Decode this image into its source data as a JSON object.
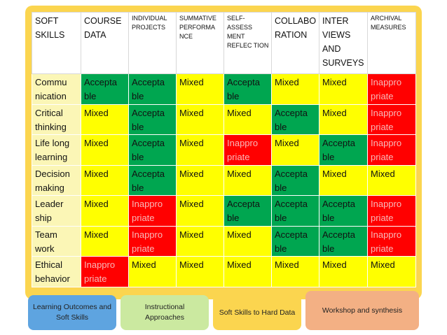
{
  "table": {
    "headers": [
      "SOFT SKILLS",
      "COURSE DATA",
      "INDIVIDUAL PROJECTS",
      "SUMMATIVE PERFORMA NCE",
      "SELF-ASSESS MENT REFLEC TION",
      "COLLABO RATION",
      "INTER VIEWS AND SURVEYS",
      "ARCHIVAL MEASURES"
    ],
    "rows": [
      {
        "skill": "Commu nication",
        "cells": [
          "Accepta ble",
          "Accepta ble",
          "Mixed",
          "Accepta ble",
          "Mixed",
          "Mixed",
          "Inappro priate"
        ]
      },
      {
        "skill": "Critical thinking",
        "cells": [
          "Mixed",
          "Accepta ble",
          "Mixed",
          "Mixed",
          "Accepta ble",
          "Mixed",
          "Inappro priate"
        ]
      },
      {
        "skill": "Life long learning",
        "cells": [
          "Mixed",
          "Accepta ble",
          "Mixed",
          "Inappro priate",
          "Mixed",
          "Accepta ble",
          "Inappro priate"
        ]
      },
      {
        "skill": "Decision making",
        "cells": [
          "Mixed",
          "Accepta ble",
          "Mixed",
          "Mixed",
          "Accepta ble",
          "Mixed",
          "Mixed"
        ]
      },
      {
        "skill": "Leader ship",
        "cells": [
          "Mixed",
          "Inappro priate",
          "Mixed",
          "Accepta ble",
          "Accepta ble",
          "Accepta ble",
          "Inappro priate"
        ]
      },
      {
        "skill": "Team work",
        "cells": [
          "Mixed",
          "Inappro priate",
          "Mixed",
          "Mixed",
          "Accepta ble",
          "Accepta ble",
          "Inappro priate"
        ]
      },
      {
        "skill": "Ethical behavior",
        "cells": [
          "Inappro priate",
          "Mixed",
          "Mixed",
          "Mixed",
          "Mixed",
          "Mixed",
          "Mixed"
        ]
      }
    ]
  },
  "tabs": {
    "t1": "Learning Outcomes and Soft Skills",
    "t2": "Instructional Approaches",
    "t3": "Soft Skills to Hard Data",
    "t4": "Workshop and synthesis"
  },
  "colors": {
    "acceptable": "#00a650",
    "mixed": "#ffff00",
    "inappropriate": "#ff0000",
    "label": "#fbf6b6",
    "frame": "#fbd54f"
  }
}
